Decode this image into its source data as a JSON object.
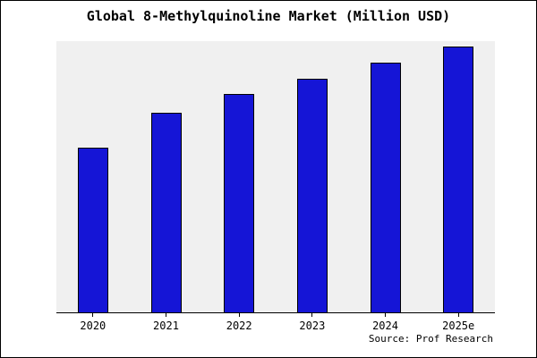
{
  "title": "Global 8-Methylquinoline Market (Million USD)",
  "source": "Source: Prof Research",
  "colors": {
    "bar_fill": "#1515d6",
    "bar_border": "#000000",
    "plot_background": "#f0f0f0",
    "page_background": "#ffffff",
    "text": "#000000"
  },
  "chart_data": {
    "type": "bar",
    "categories": [
      "2020",
      "2021",
      "2022",
      "2023",
      "2024",
      "2025e"
    ],
    "values": [
      62,
      75,
      82,
      88,
      94,
      100
    ],
    "title": "Global 8-Methylquinoline Market (Million USD)",
    "xlabel": "",
    "ylabel": "",
    "ylim": [
      0,
      102
    ],
    "grid": false,
    "legend": false,
    "annotation": "Source: Prof Research"
  }
}
